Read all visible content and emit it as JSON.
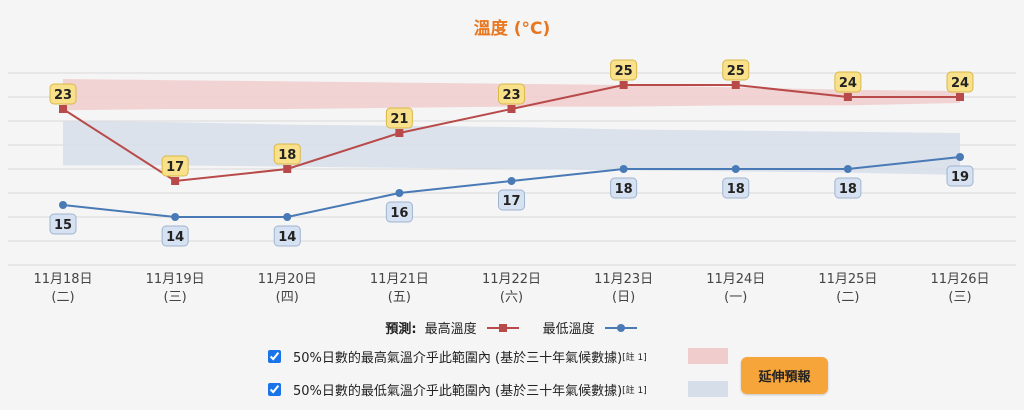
{
  "chart_data": {
    "type": "line",
    "title": "溫度 (°C)",
    "categories": [
      {
        "date": "11月18日",
        "weekday": "(二)"
      },
      {
        "date": "11月19日",
        "weekday": "(三)"
      },
      {
        "date": "11月20日",
        "weekday": "(四)"
      },
      {
        "date": "11月21日",
        "weekday": "(五)"
      },
      {
        "date": "11月22日",
        "weekday": "(六)"
      },
      {
        "date": "11月23日",
        "weekday": "(日)"
      },
      {
        "date": "11月24日",
        "weekday": "(一)"
      },
      {
        "date": "11月25日",
        "weekday": "(二)"
      },
      {
        "date": "11月26日",
        "weekday": "(三)"
      }
    ],
    "ylim": [
      10,
      27
    ],
    "grid": true,
    "series": [
      {
        "name": "最高溫度",
        "values": [
          23,
          17,
          18,
          21,
          23,
          25,
          25,
          24,
          24
        ],
        "color": "#b94a4a",
        "marker": "square"
      },
      {
        "name": "最低溫度",
        "values": [
          15,
          14,
          14,
          16,
          17,
          18,
          18,
          18,
          19
        ],
        "color": "#4a7ab5",
        "marker": "circle"
      }
    ],
    "bands": [
      {
        "name": "50%日數的最高氣溫介乎此範圍內",
        "lower": [
          22.9,
          23.0,
          23.0,
          23.1,
          23.2,
          23.2,
          23.3,
          23.3,
          23.5
        ],
        "upper": [
          25.5,
          25.4,
          25.3,
          25.2,
          25.1,
          25.0,
          24.8,
          24.6,
          24.5
        ],
        "color": "#f0cccc"
      },
      {
        "name": "50%日數的最低氣溫介乎此範圍內",
        "lower": [
          18.3,
          18.3,
          18.2,
          18.1,
          18.0,
          17.9,
          17.8,
          17.7,
          17.5
        ],
        "upper": [
          22.0,
          21.9,
          21.7,
          21.6,
          21.5,
          21.3,
          21.2,
          21.1,
          21.0
        ],
        "color": "#d6deea"
      }
    ]
  },
  "legend": {
    "prefix": "預測:",
    "max_label": "最高溫度",
    "min_label": "最低溫度"
  },
  "toggles": [
    {
      "text": "50%日數的最高氣溫介乎此範圍內 (基於三十年氣候數據)",
      "note": "[註 1]",
      "checked": true
    },
    {
      "text": "50%日數的最低氣溫介乎此範圍內 (基於三十年氣候數據)",
      "note": "[註 1]",
      "checked": true
    }
  ],
  "extend_button": {
    "label": "延伸預報"
  },
  "colors": {
    "accent": "#e87722",
    "button": "#f6a53a",
    "label_box_max": "#f9e08a",
    "label_box_min": "#d6e2f2"
  }
}
